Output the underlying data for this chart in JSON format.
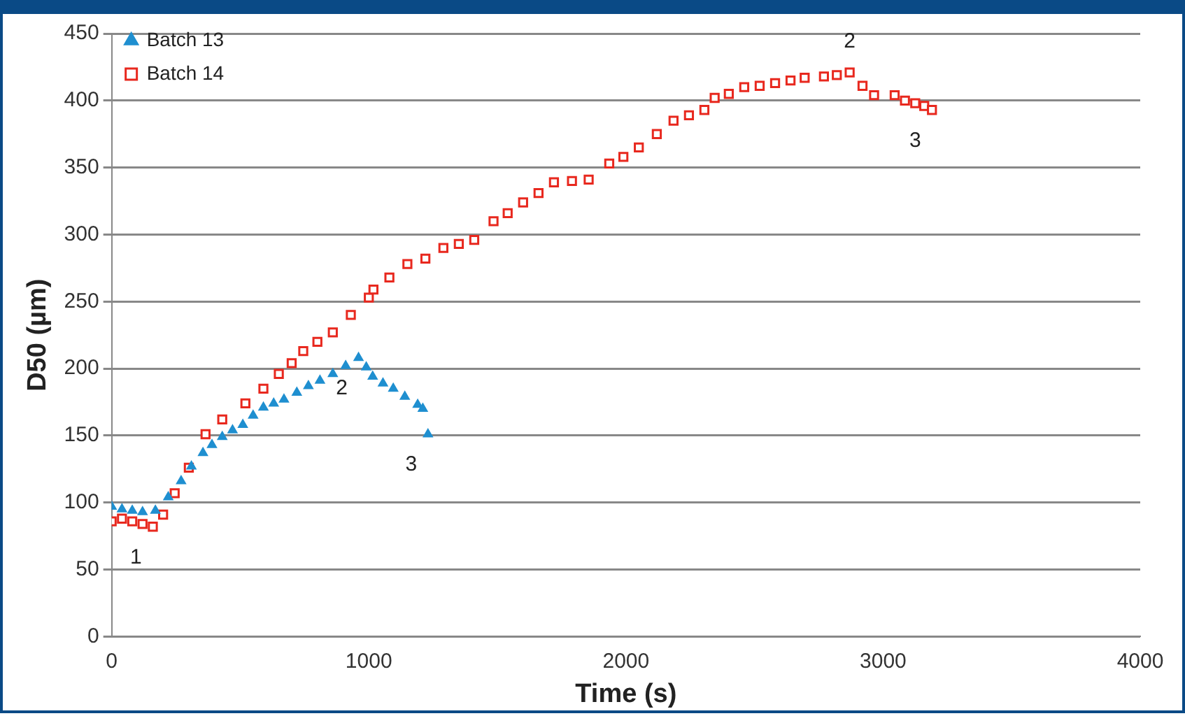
{
  "chart_data": {
    "type": "scatter",
    "xlabel": "Time (s)",
    "ylabel": "D50 (µm)",
    "xlim": [
      0,
      4000
    ],
    "xticks": [
      0,
      1000,
      2000,
      3000,
      4000
    ],
    "ylim": [
      0,
      450
    ],
    "yticks": [
      0,
      50,
      100,
      150,
      200,
      250,
      300,
      350,
      400,
      450
    ],
    "grid": "y",
    "legend": "top left",
    "series": [
      {
        "name": "Batch 13",
        "color": "#1f8fd0",
        "marker": "triangle",
        "x": [
          0,
          40,
          80,
          120,
          170,
          220,
          270,
          310,
          355,
          390,
          430,
          470,
          510,
          550,
          590,
          630,
          670,
          720,
          765,
          810,
          860,
          910,
          960,
          990,
          1015,
          1055,
          1095,
          1140,
          1190,
          1210,
          1230
        ],
        "values": [
          97,
          95,
          94,
          93,
          94,
          104,
          116,
          127,
          137,
          143,
          149,
          154,
          158,
          165,
          171,
          174,
          177,
          182,
          187,
          191,
          196,
          202,
          208,
          201,
          194,
          189,
          185,
          179,
          173,
          170,
          151
        ]
      },
      {
        "name": "Batch 14",
        "color": "#e8281e",
        "marker": "square",
        "x": [
          0,
          40,
          80,
          120,
          160,
          200,
          245,
          300,
          365,
          430,
          520,
          590,
          650,
          700,
          745,
          800,
          860,
          930,
          1000,
          1018,
          1080,
          1150,
          1220,
          1290,
          1350,
          1410,
          1485,
          1540,
          1600,
          1660,
          1720,
          1790,
          1855,
          1935,
          1990,
          2050,
          2120,
          2185,
          2245,
          2305,
          2345,
          2400,
          2460,
          2520,
          2580,
          2640,
          2695,
          2770,
          2820,
          2870,
          2920,
          2965,
          3045,
          3085,
          3125,
          3160,
          3190
        ],
        "values": [
          86,
          88,
          86,
          84,
          82,
          91,
          107,
          126,
          151,
          162,
          174,
          185,
          196,
          204,
          213,
          220,
          227,
          240,
          253,
          259,
          268,
          278,
          282,
          290,
          293,
          296,
          310,
          316,
          324,
          331,
          339,
          340,
          341,
          353,
          358,
          365,
          375,
          385,
          389,
          393,
          402,
          405,
          410,
          411,
          413,
          415,
          417,
          418,
          419,
          421,
          411,
          404,
          404,
          400,
          398,
          396,
          393
        ]
      }
    ],
    "annotations": [
      {
        "text": "1",
        "x": 160,
        "y": 82
      },
      {
        "text": "2",
        "x": 960,
        "y": 208
      },
      {
        "text": "3",
        "x": 1230,
        "y": 151
      },
      {
        "text": "2",
        "x": 2870,
        "y": 421
      },
      {
        "text": "3",
        "x": 3190,
        "y": 393
      }
    ]
  }
}
